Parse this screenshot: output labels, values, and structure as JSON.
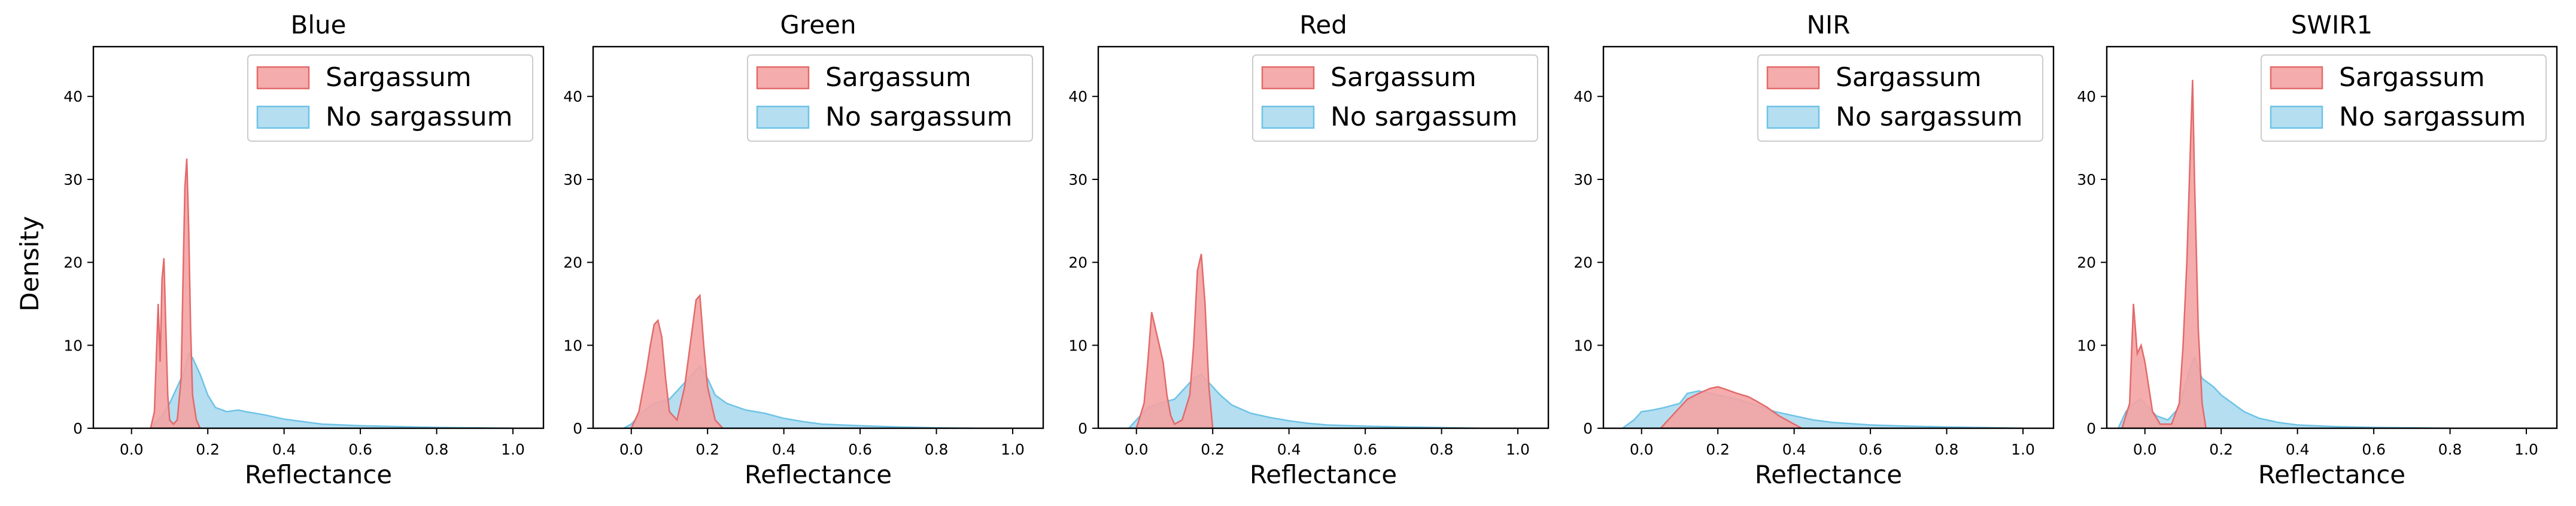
{
  "figure": {
    "ylabel": "Density"
  },
  "colors": {
    "sargassum_fill": "#f4a3a3",
    "sargassum_edge": "#e36a6a",
    "no_sargassum_fill": "#a8d8ef",
    "no_sargassum_edge": "#6ec3e6"
  },
  "chart_data": [
    {
      "type": "histogram",
      "title": "Blue",
      "xlabel": "Reflectance",
      "ylabel": "Density",
      "xlim": [
        -0.1,
        1.08
      ],
      "ylim": [
        0,
        46
      ],
      "xticks": [
        "0.0",
        "0.2",
        "0.4",
        "0.6",
        "0.8",
        "1.0"
      ],
      "yticks": [
        "0",
        "10",
        "20",
        "30",
        "40"
      ],
      "legend": {
        "position": "upper right",
        "entries": [
          "Sargassum",
          "No sargassum"
        ]
      },
      "series": [
        {
          "name": "Sargassum",
          "x": [
            0.05,
            0.06,
            0.07,
            0.075,
            0.08,
            0.085,
            0.09,
            0.095,
            0.1,
            0.11,
            0.12,
            0.13,
            0.135,
            0.14,
            0.145,
            0.15,
            0.155,
            0.16,
            0.17,
            0.18
          ],
          "y": [
            0,
            2,
            15,
            8,
            18,
            20.5,
            12,
            4,
            1,
            0.5,
            1,
            6,
            18,
            29,
            32.5,
            24,
            12,
            4,
            1,
            0
          ]
        },
        {
          "name": "No sargassum",
          "x": [
            0.05,
            0.08,
            0.1,
            0.12,
            0.14,
            0.15,
            0.16,
            0.18,
            0.2,
            0.22,
            0.25,
            0.28,
            0.3,
            0.35,
            0.4,
            0.45,
            0.5,
            0.6,
            0.7,
            0.8,
            0.9,
            1.0
          ],
          "y": [
            0,
            1.5,
            3,
            5,
            7,
            9,
            8.5,
            6.5,
            4,
            2.5,
            2,
            2.2,
            2,
            1.6,
            1.1,
            0.8,
            0.5,
            0.3,
            0.2,
            0.1,
            0.05,
            0
          ]
        }
      ]
    },
    {
      "type": "histogram",
      "title": "Green",
      "xlabel": "Reflectance",
      "ylabel": "",
      "xlim": [
        -0.1,
        1.08
      ],
      "ylim": [
        0,
        46
      ],
      "xticks": [
        "0.0",
        "0.2",
        "0.4",
        "0.6",
        "0.8",
        "1.0"
      ],
      "yticks": [
        "0",
        "10",
        "20",
        "30",
        "40"
      ],
      "legend": {
        "position": "upper right",
        "entries": [
          "Sargassum",
          "No sargassum"
        ]
      },
      "series": [
        {
          "name": "Sargassum",
          "x": [
            0.0,
            0.02,
            0.04,
            0.05,
            0.06,
            0.07,
            0.08,
            0.09,
            0.1,
            0.12,
            0.14,
            0.16,
            0.17,
            0.18,
            0.19,
            0.2,
            0.22,
            0.24
          ],
          "y": [
            0,
            2,
            7,
            10,
            12.5,
            13,
            11,
            6,
            2,
            1,
            5,
            12,
            15.5,
            16,
            10,
            5,
            1,
            0
          ]
        },
        {
          "name": "No sargassum",
          "x": [
            -0.02,
            0.0,
            0.03,
            0.06,
            0.1,
            0.13,
            0.16,
            0.18,
            0.2,
            0.22,
            0.25,
            0.3,
            0.35,
            0.4,
            0.45,
            0.5,
            0.6,
            0.7,
            0.8,
            0.9
          ],
          "y": [
            0,
            0.5,
            2,
            3,
            3.5,
            5,
            6.5,
            7.5,
            6,
            4,
            3,
            2.2,
            1.8,
            1.2,
            0.8,
            0.5,
            0.3,
            0.15,
            0.05,
            0
          ]
        }
      ]
    },
    {
      "type": "histogram",
      "title": "Red",
      "xlabel": "Reflectance",
      "ylabel": "",
      "xlim": [
        -0.1,
        1.08
      ],
      "ylim": [
        0,
        46
      ],
      "xticks": [
        "0.0",
        "0.2",
        "0.4",
        "0.6",
        "0.8",
        "1.0"
      ],
      "yticks": [
        "0",
        "10",
        "20",
        "30",
        "40"
      ],
      "legend": {
        "position": "upper right",
        "entries": [
          "Sargassum",
          "No sargassum"
        ]
      },
      "series": [
        {
          "name": "Sargassum",
          "x": [
            0.0,
            0.02,
            0.03,
            0.04,
            0.05,
            0.06,
            0.07,
            0.08,
            0.09,
            0.1,
            0.12,
            0.14,
            0.15,
            0.16,
            0.17,
            0.18,
            0.19,
            0.2
          ],
          "y": [
            0,
            3,
            8,
            14,
            12,
            10,
            8,
            4,
            1.5,
            0.5,
            1,
            4,
            10,
            19,
            21,
            15,
            5,
            0
          ]
        },
        {
          "name": "No sargassum",
          "x": [
            -0.02,
            0.0,
            0.03,
            0.06,
            0.1,
            0.13,
            0.15,
            0.17,
            0.19,
            0.22,
            0.25,
            0.3,
            0.35,
            0.4,
            0.45,
            0.5,
            0.6,
            0.7,
            0.8,
            0.9
          ],
          "y": [
            0,
            1,
            2.5,
            3,
            3.5,
            5,
            6,
            6.5,
            5.5,
            4,
            2.8,
            1.8,
            1.3,
            0.9,
            0.6,
            0.4,
            0.25,
            0.15,
            0.08,
            0
          ]
        }
      ]
    },
    {
      "type": "histogram",
      "title": "NIR",
      "xlabel": "Reflectance",
      "ylabel": "",
      "xlim": [
        -0.1,
        1.08
      ],
      "ylim": [
        0,
        46
      ],
      "xticks": [
        "0.0",
        "0.2",
        "0.4",
        "0.6",
        "0.8",
        "1.0"
      ],
      "yticks": [
        "0",
        "10",
        "20",
        "30",
        "40"
      ],
      "legend": {
        "position": "upper right",
        "entries": [
          "Sargassum",
          "No sargassum"
        ]
      },
      "series": [
        {
          "name": "Sargassum",
          "x": [
            0.05,
            0.08,
            0.1,
            0.12,
            0.15,
            0.18,
            0.2,
            0.22,
            0.25,
            0.28,
            0.3,
            0.33,
            0.36,
            0.4,
            0.42
          ],
          "y": [
            0,
            1.5,
            2.5,
            3.5,
            4.2,
            4.8,
            5,
            4.7,
            4.2,
            3.8,
            3.3,
            2.5,
            1.5,
            0.5,
            0
          ]
        },
        {
          "name": "No sargassum",
          "x": [
            -0.05,
            -0.02,
            0.0,
            0.03,
            0.06,
            0.1,
            0.12,
            0.15,
            0.2,
            0.25,
            0.3,
            0.35,
            0.4,
            0.45,
            0.5,
            0.6,
            0.7,
            0.8,
            0.9,
            1.0
          ],
          "y": [
            0,
            1,
            2,
            2.2,
            2.5,
            3,
            4.2,
            4.5,
            4,
            3.5,
            2.8,
            2,
            1.5,
            1,
            0.7,
            0.4,
            0.25,
            0.15,
            0.08,
            0
          ]
        }
      ]
    },
    {
      "type": "histogram",
      "title": "SWIR1",
      "xlabel": "Reflectance",
      "ylabel": "",
      "xlim": [
        -0.1,
        1.08
      ],
      "ylim": [
        0,
        46
      ],
      "xticks": [
        "0.0",
        "0.2",
        "0.4",
        "0.6",
        "0.8",
        "1.0"
      ],
      "yticks": [
        "0",
        "10",
        "20",
        "30",
        "40"
      ],
      "legend": {
        "position": "upper right",
        "entries": [
          "Sargassum",
          "No sargassum"
        ]
      },
      "series": [
        {
          "name": "Sargassum",
          "x": [
            -0.06,
            -0.04,
            -0.03,
            -0.02,
            -0.01,
            0.0,
            0.01,
            0.02,
            0.04,
            0.07,
            0.09,
            0.1,
            0.11,
            0.12,
            0.125,
            0.13,
            0.14,
            0.15,
            0.16
          ],
          "y": [
            0,
            3,
            15,
            9,
            10,
            8,
            5,
            2,
            0.5,
            0.5,
            3,
            10,
            20,
            35,
            42,
            30,
            12,
            3,
            0
          ]
        },
        {
          "name": "No sargassum",
          "x": [
            -0.07,
            -0.05,
            -0.03,
            -0.01,
            0.01,
            0.03,
            0.06,
            0.09,
            0.12,
            0.13,
            0.15,
            0.18,
            0.2,
            0.23,
            0.26,
            0.3,
            0.35,
            0.4,
            0.5,
            0.6,
            0.7,
            0.8
          ],
          "y": [
            0,
            2,
            3,
            3.5,
            2.5,
            1.5,
            1,
            2.5,
            7.5,
            8.5,
            6,
            5,
            4,
            3,
            2,
            1.2,
            0.7,
            0.4,
            0.2,
            0.1,
            0.05,
            0
          ]
        }
      ]
    }
  ]
}
